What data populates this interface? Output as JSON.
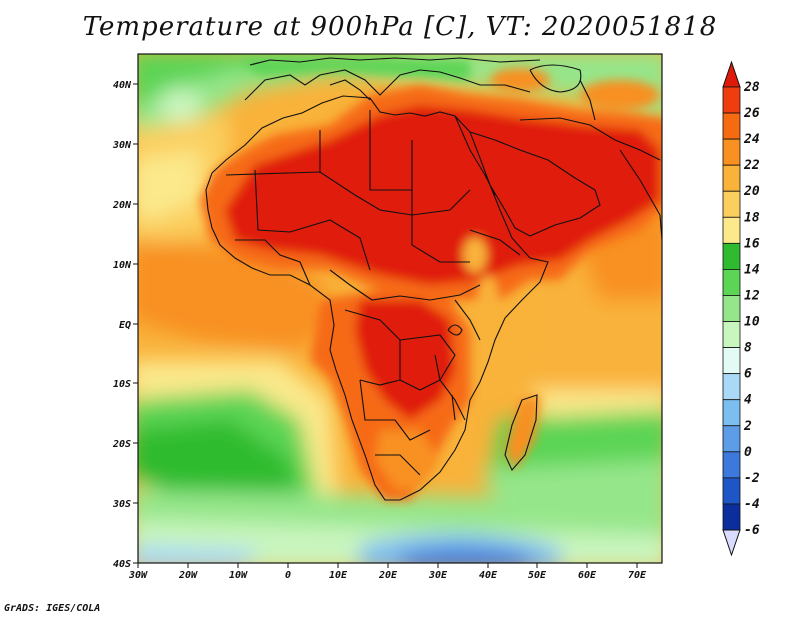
{
  "title": "Temperature at 900hPa [C], VT: 2020051818",
  "credit": "GrADS: IGES/COLA",
  "axes": {
    "lon_labels": [
      "30W",
      "20W",
      "10W",
      "0",
      "10E",
      "20E",
      "30E",
      "40E",
      "50E",
      "60E",
      "70E"
    ],
    "lat_labels": [
      "40N",
      "30N",
      "20N",
      "10N",
      "EQ",
      "10S",
      "20S",
      "30S",
      "40S"
    ]
  },
  "colorbar": {
    "labels": [
      "28",
      "26",
      "24",
      "22",
      "20",
      "18",
      "16",
      "14",
      "12",
      "10",
      "8",
      "6",
      "4",
      "2",
      "0",
      "-2",
      "-4",
      "-6"
    ],
    "colors": [
      "#e01a0a",
      "#ef3d0f",
      "#f66a12",
      "#f89022",
      "#f9b23a",
      "#fbcf5e",
      "#fbe98c",
      "#2fbb2f",
      "#5cd455",
      "#95e68a",
      "#c9f5be",
      "#e3fbf5",
      "#a9d9f6",
      "#7dbef0",
      "#5d9ce6",
      "#3d78dc",
      "#1e56c8",
      "#0a2f9c",
      "#06146a"
    ]
  },
  "map_data": {
    "region": "Africa and surrounding seas",
    "lon_range": [
      -30,
      75
    ],
    "lat_range": [
      -40,
      45
    ],
    "variable": "Temperature at 900hPa",
    "units": "C",
    "valid_time": "2020051818"
  }
}
